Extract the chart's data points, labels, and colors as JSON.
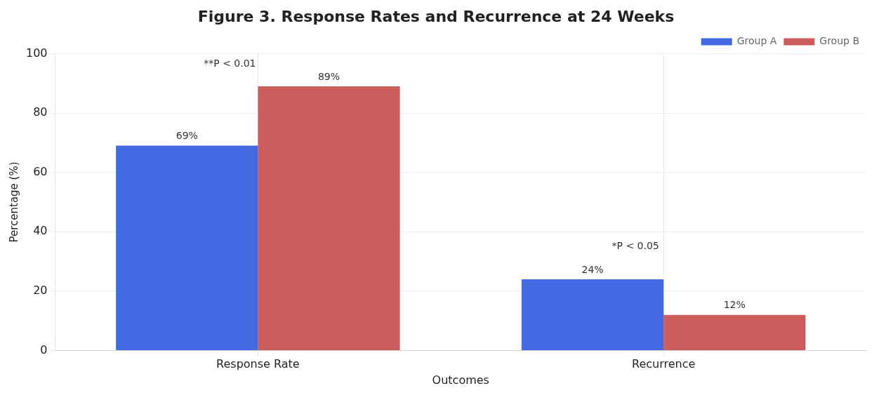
{
  "chart_data": {
    "type": "bar",
    "title": "Figure 3. Response Rates and Recurrence at 24 Weeks",
    "xlabel": "Outcomes",
    "ylabel": "Percentage (%)",
    "categories": [
      "Response Rate",
      "Recurrence"
    ],
    "series": [
      {
        "name": "Group A",
        "color": "#4169e1",
        "values": [
          69,
          24
        ],
        "value_labels": [
          "69%",
          "24%"
        ]
      },
      {
        "name": "Group B",
        "color": "#cd5c5c",
        "values": [
          89,
          12
        ],
        "value_labels": [
          "89%",
          "12%"
        ]
      }
    ],
    "ylim": [
      0,
      100
    ],
    "yticks": [
      0,
      20,
      40,
      60,
      80,
      100
    ],
    "grid": true,
    "legend": "top right",
    "annotations": [
      "**P < 0.01",
      "*P < 0.05"
    ]
  }
}
